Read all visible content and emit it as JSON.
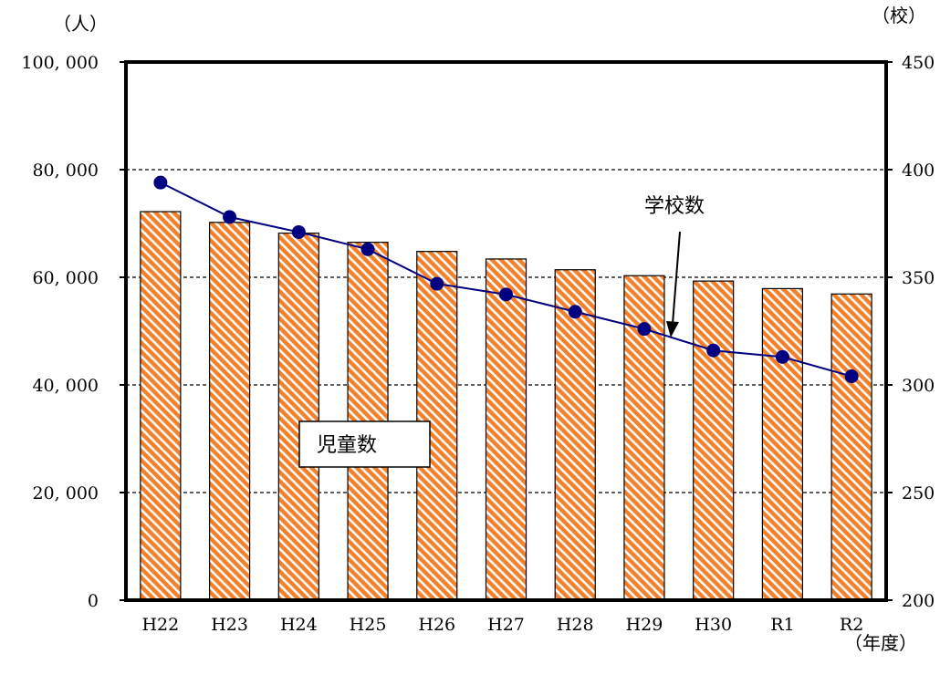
{
  "chart_data": {
    "type": "bar",
    "categories": [
      "H22",
      "H23",
      "H24",
      "H25",
      "H26",
      "H27",
      "H28",
      "H29",
      "H30",
      "R1",
      "R2"
    ],
    "series": [
      {
        "name": "児童数",
        "type": "bar",
        "axis": "left",
        "values": [
          72200,
          70200,
          68200,
          66500,
          64800,
          63400,
          61400,
          60300,
          59300,
          57900,
          56900
        ]
      },
      {
        "name": "学校数",
        "type": "line",
        "axis": "right",
        "values": [
          394,
          378,
          371,
          363,
          347,
          342,
          334,
          326,
          316,
          313,
          304
        ]
      }
    ],
    "y_left": {
      "unit": "（人）",
      "min": 0,
      "max": 100000,
      "ticks": [
        0,
        20000,
        40000,
        60000,
        80000,
        100000
      ],
      "tick_labels": [
        "0",
        "20, 000",
        "40, 000",
        "60, 000",
        "80, 000",
        "100, 000"
      ]
    },
    "y_right": {
      "unit": "（校）",
      "min": 200,
      "max": 450,
      "ticks": [
        200,
        250,
        300,
        350,
        400,
        450
      ],
      "tick_labels": [
        "200",
        "250",
        "300",
        "350",
        "400",
        "450"
      ]
    },
    "xlabel": "（年度）",
    "grid": "horizontal dashed",
    "annotations": [
      {
        "text": "児童数",
        "target": "bars"
      },
      {
        "text": "学校数",
        "target": "line"
      }
    ],
    "colors": {
      "bar_fill": "#f4802a",
      "bar_stripe": "#ffffff",
      "line": "#000080",
      "marker": "#000080"
    }
  }
}
